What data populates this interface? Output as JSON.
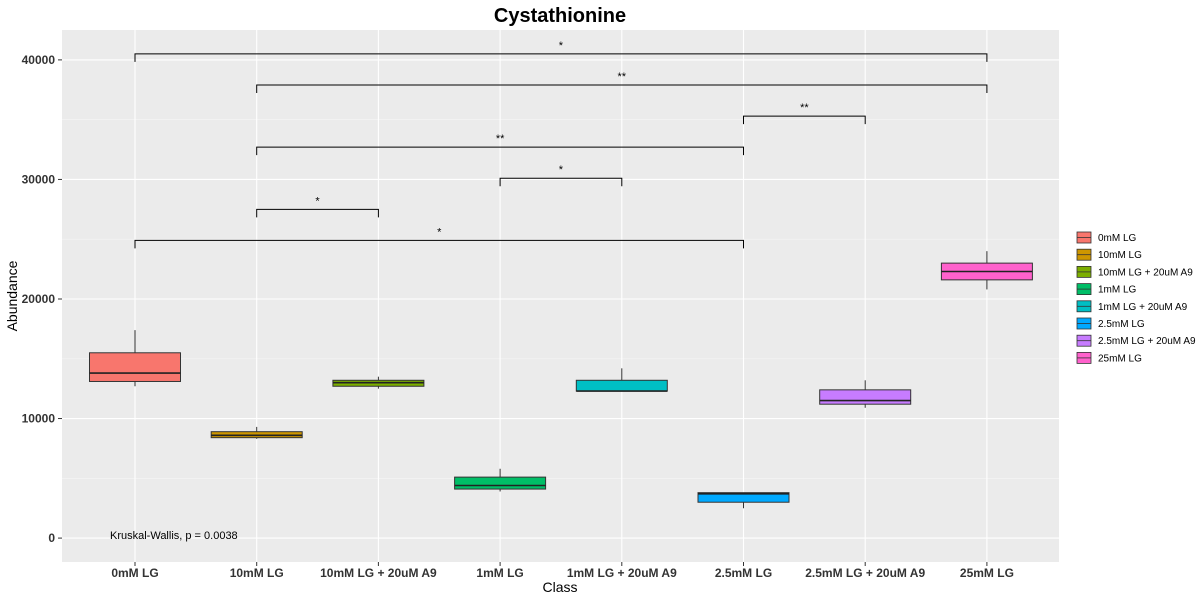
{
  "chart_data": {
    "type": "box",
    "title": "Cystathionine",
    "xlabel": "Class",
    "ylabel": "Abundance",
    "ylim": [
      -2000,
      42500
    ],
    "yticks": [
      0,
      10000,
      20000,
      30000,
      40000
    ],
    "grid": true,
    "legend_position": "right",
    "categories": [
      "0mM LG",
      "10mM LG",
      "10mM LG + 20uM A9",
      "1mM LG",
      "1mM LG + 20uM A9",
      "2.5mM LG",
      "2.5mM LG + 20uM A9",
      "25mM LG"
    ],
    "colors": [
      "#F8766D",
      "#CD9600",
      "#7CAE00",
      "#00BE67",
      "#00BFC4",
      "#00A9FF",
      "#C77CFF",
      "#FF61CC"
    ],
    "boxes": [
      {
        "name": "0mM LG",
        "min": 12700,
        "q1": 13100,
        "median": 13800,
        "q3": 15500,
        "max": 17400
      },
      {
        "name": "10mM LG",
        "min": 8300,
        "q1": 8400,
        "median": 8600,
        "q3": 8900,
        "max": 9300
      },
      {
        "name": "10mM LG + 20uM A9",
        "min": 12500,
        "q1": 12700,
        "median": 13000,
        "q3": 13200,
        "max": 13500
      },
      {
        "name": "1mM LG",
        "min": 3900,
        "q1": 4100,
        "median": 4400,
        "q3": 5100,
        "max": 5800
      },
      {
        "name": "1mM LG + 20uM A9",
        "min": 12300,
        "q1": 12300,
        "median": 12300,
        "q3": 13200,
        "max": 14200
      },
      {
        "name": "2.5mM LG",
        "min": 2500,
        "q1": 3000,
        "median": 3700,
        "q3": 3800,
        "max": 3800
      },
      {
        "name": "2.5mM LG + 20uM A9",
        "min": 10900,
        "q1": 11200,
        "median": 11500,
        "q3": 12400,
        "max": 13200
      },
      {
        "name": "25mM LG",
        "min": 20800,
        "q1": 21600,
        "median": 22300,
        "q3": 23000,
        "max": 24000
      }
    ],
    "comparisons": [
      {
        "from": 0,
        "to": 7,
        "y": 40500,
        "label": "*"
      },
      {
        "from": 1,
        "to": 7,
        "y": 37900,
        "label": "**"
      },
      {
        "from": 5,
        "to": 6,
        "y": 35300,
        "label": "**"
      },
      {
        "from": 1,
        "to": 5,
        "y": 32700,
        "label": "**"
      },
      {
        "from": 3,
        "to": 4,
        "y": 30100,
        "label": "*"
      },
      {
        "from": 1,
        "to": 2,
        "y": 27500,
        "label": "*"
      },
      {
        "from": 0,
        "to": 5,
        "y": 24900,
        "label": "*"
      }
    ],
    "annotation": {
      "text": "Kruskal-Wallis, p = 0.0038",
      "x": 0,
      "y": 250
    }
  }
}
